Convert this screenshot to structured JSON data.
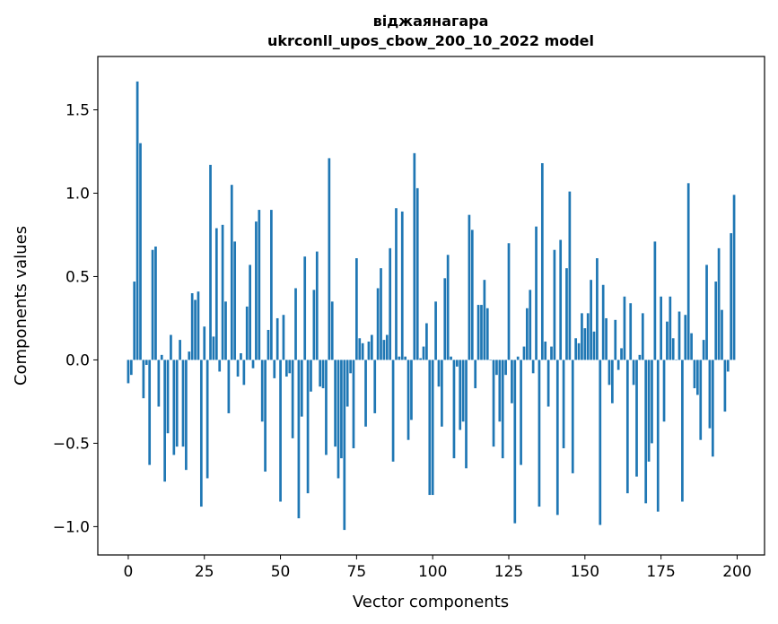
{
  "chart_data": {
    "type": "bar",
    "title_line1": "віджаянагара",
    "title_line2": "ukrconll_upos_cbow_200_10_2022 model",
    "xlabel": "Vector components",
    "ylabel": "Components values",
    "xlim": [
      -10,
      209
    ],
    "ylim": [
      -1.17,
      1.82
    ],
    "xticks": [
      0,
      25,
      50,
      75,
      100,
      125,
      150,
      175,
      200
    ],
    "xtick_labels": [
      "0",
      "25",
      "50",
      "75",
      "100",
      "125",
      "150",
      "175",
      "200"
    ],
    "yticks": [
      -1.0,
      -0.5,
      0.0,
      0.5,
      1.0,
      1.5
    ],
    "ytick_labels": [
      "−1.0",
      "−0.5",
      "0.0",
      "0.5",
      "1.0",
      "1.5"
    ],
    "bar_color": "#1f77b4",
    "values": [
      -0.14,
      -0.09,
      0.47,
      1.67,
      1.3,
      -0.23,
      -0.03,
      -0.63,
      0.66,
      0.68,
      -0.28,
      0.03,
      -0.73,
      -0.44,
      0.15,
      -0.57,
      -0.52,
      0.12,
      -0.52,
      -0.66,
      0.05,
      0.4,
      0.36,
      0.41,
      -0.88,
      0.2,
      -0.71,
      1.17,
      0.14,
      0.79,
      -0.07,
      0.81,
      0.35,
      -0.32,
      1.05,
      0.71,
      -0.1,
      0.04,
      -0.15,
      0.32,
      0.57,
      -0.05,
      0.83,
      0.9,
      -0.37,
      -0.67,
      0.18,
      0.9,
      -0.11,
      0.25,
      -0.85,
      0.27,
      -0.1,
      -0.08,
      -0.47,
      0.43,
      -0.95,
      -0.34,
      0.62,
      -0.8,
      -0.19,
      0.42,
      0.65,
      -0.16,
      -0.17,
      -0.57,
      1.21,
      0.35,
      -0.52,
      -0.71,
      -0.59,
      -1.02,
      -0.28,
      -0.08,
      -0.53,
      0.61,
      0.13,
      0.1,
      -0.4,
      0.11,
      0.15,
      -0.32,
      0.43,
      0.55,
      0.12,
      0.15,
      0.67,
      -0.61,
      0.91,
      0.02,
      0.89,
      0.02,
      -0.48,
      -0.36,
      1.24,
      1.03,
      0.01,
      0.08,
      0.22,
      -0.81,
      -0.81,
      0.35,
      -0.16,
      -0.4,
      0.49,
      0.63,
      0.02,
      -0.59,
      -0.04,
      -0.42,
      -0.37,
      -0.65,
      0.87,
      0.78,
      -0.17,
      0.33,
      0.33,
      0.48,
      0.31,
      0.0,
      -0.52,
      -0.09,
      -0.37,
      -0.59,
      -0.09,
      0.7,
      -0.26,
      -0.98,
      0.02,
      -0.63,
      0.08,
      0.31,
      0.42,
      -0.08,
      0.8,
      -0.88,
      1.18,
      0.11,
      -0.28,
      0.08,
      0.66,
      -0.93,
      0.72,
      -0.53,
      0.55,
      1.01,
      -0.68,
      0.13,
      0.1,
      0.28,
      0.19,
      0.28,
      0.48,
      0.17,
      0.61,
      -0.99,
      0.45,
      0.25,
      -0.15,
      -0.26,
      0.24,
      -0.06,
      0.07,
      0.38,
      -0.8,
      0.34,
      -0.15,
      -0.7,
      0.03,
      0.28,
      -0.86,
      -0.61,
      -0.5,
      0.71,
      -0.91,
      0.38,
      -0.37,
      0.23,
      0.38,
      0.13,
      0.0,
      0.29,
      -0.85,
      0.27,
      1.06,
      0.16,
      -0.17,
      -0.21,
      -0.48,
      0.12,
      0.57,
      -0.41,
      -0.58,
      0.47,
      0.67,
      0.3,
      -0.31,
      -0.07,
      0.76,
      0.99
    ]
  }
}
